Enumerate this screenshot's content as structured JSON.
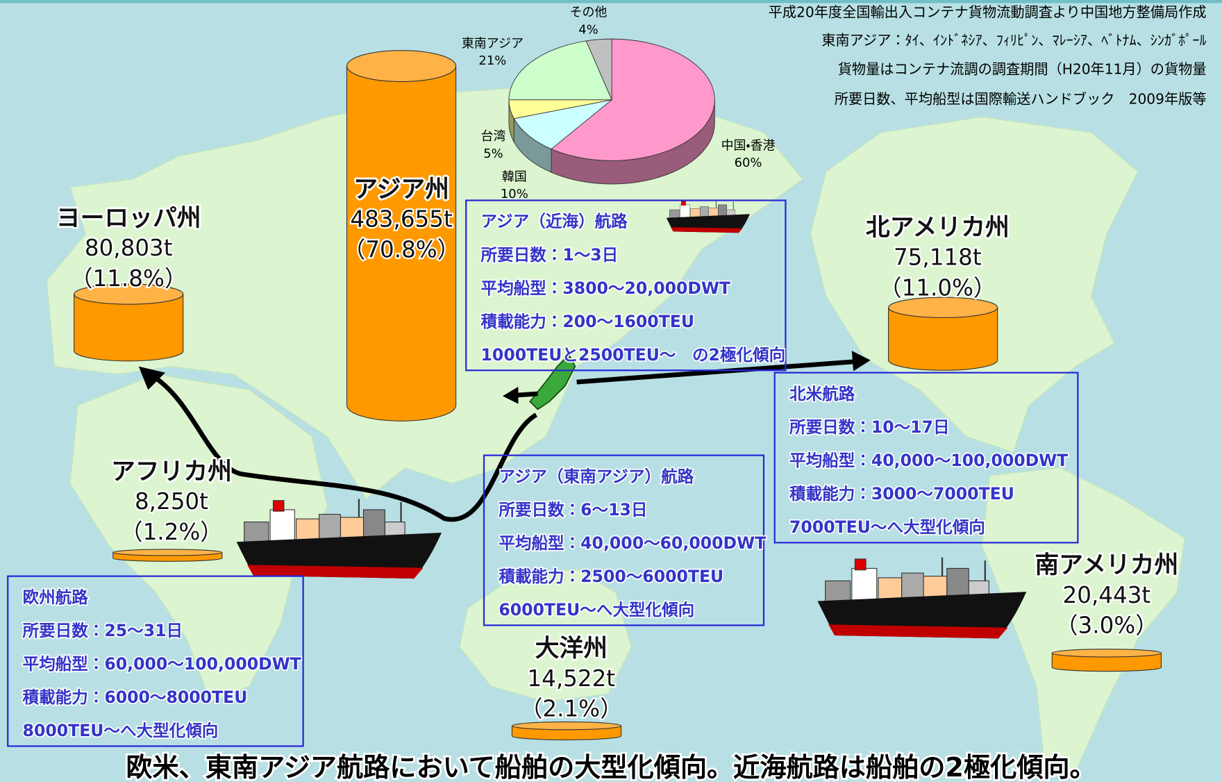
{
  "notes": [
    "平成20年度全国輸出入コンテナ貨物流動調査より中国地方整備局作成",
    "東南アジア：ﾀｲ、ｲﾝﾄﾞﾈｼｱ、ﾌｨﾘﾋﾟﾝ、ﾏﾚｰｼｱ、ﾍﾞﾄﾅﾑ、ｼﾝｶﾞﾎﾟｰﾙ",
    "貨物量はコンテナ流調の調査期間（H20年11月）の貨物量",
    "所要日数、平均船型は国際輸送ハンドブック　2009年版等"
  ],
  "pie": {
    "type": "pie",
    "labels": [
      "中国・香港",
      "韓国",
      "台湾",
      "東南アジア",
      "その他"
    ],
    "values": [
      60,
      10,
      5,
      21,
      4
    ],
    "value_labels": [
      "60%",
      "10%",
      "5%",
      "21%",
      "4%"
    ],
    "colors": [
      "#ff99cc",
      "#ccffff",
      "#ffff99",
      "#ccffcc",
      "#c0c0c0"
    ]
  },
  "cylinder_color": "#ff9900",
  "regions": [
    {
      "name": "アジア州",
      "value": 483655,
      "value_label": "483,655t",
      "share": "（70.8%）"
    },
    {
      "name": "ヨーロッパ州",
      "value": 80803,
      "value_label": "80,803t",
      "share": "（11.8%）"
    },
    {
      "name": "北アメリカ州",
      "value": 75118,
      "value_label": "75,118t",
      "share": "（11.0%）"
    },
    {
      "name": "アフリカ州",
      "value": 8250,
      "value_label": "8,250t",
      "share": "（1.2%）"
    },
    {
      "name": "大洋州",
      "value": 14522,
      "value_label": "14,522t",
      "share": "（2.1%）"
    },
    {
      "name": "南アメリカ州",
      "value": 20443,
      "value_label": "20,443t",
      "share": "（3.0%）"
    }
  ],
  "routes": [
    {
      "title": "アジア（近海）航路",
      "lines": [
        "所要日数：1～3日",
        "平均船型：3800～20,000DWT",
        "積載能力：200～1600TEU",
        "1000TEUと2500TEU～　の2極化傾向"
      ]
    },
    {
      "title": "アジア（東南アジア）航路",
      "lines": [
        "所要日数：6～13日",
        "平均船型：40,000～60,000DWT",
        "積載能力：2500～6000TEU",
        "6000TEU～へ大型化傾向"
      ]
    },
    {
      "title": "北米航路",
      "lines": [
        "所要日数：10～17日",
        "平均船型：40,000～100,000DWT",
        "積載能力：3000～7000TEU",
        "7000TEU～へ大型化傾向"
      ]
    },
    {
      "title": "欧州航路",
      "lines": [
        "所要日数：25～31日",
        "平均船型：60,000～100,000DWT",
        "積載能力：6000～8000TEU",
        "8000TEU～へ大型化傾向"
      ]
    }
  ],
  "footer": "欧米、東南アジア航路において船舶の大型化傾向。近海航路は船舶の2極化傾向。"
}
